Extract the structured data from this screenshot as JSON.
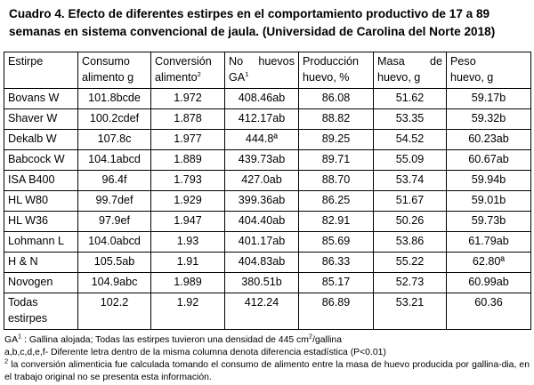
{
  "caption": {
    "line1": "Cuadro 4. Efecto de diferentes estirpes en el comportamiento productivo de 17 a 89",
    "line2": "semanas en sistema convencional de jaula. (Universidad de Carolina del Norte 2018)"
  },
  "headers": {
    "estirpe": "Estirpe",
    "consumo_1": "Consumo",
    "consumo_2": "alimento g",
    "conversion_1": "Conversión",
    "conversion_2": "alimento",
    "conversion_sup": "2",
    "huevos_1a": "No",
    "huevos_1b": "huevos",
    "huevos_2": "GA",
    "huevos_sup": "1",
    "produccion_1": "Producción",
    "produccion_2": "huevo, %",
    "masa_1a": "Masa",
    "masa_1b": "de",
    "masa_2": "huevo, g",
    "peso_1": "Peso",
    "peso_2": "huevo, g"
  },
  "rows": [
    {
      "estirpe": "Bovans W",
      "consumo": "101.8bcde",
      "conversion": "1.972",
      "huevos": "408.46ab",
      "produccion": "86.08",
      "masa": "51.62",
      "peso": "59.17b"
    },
    {
      "estirpe": "Shaver W",
      "consumo": "100.2cdef",
      "conversion": "1.878",
      "huevos": "412.17ab",
      "produccion": "88.82",
      "masa": "53.35",
      "peso": "59.32b"
    },
    {
      "estirpe": "Dekalb W",
      "consumo": "107.8c",
      "conversion": "1.977",
      "huevos": "444.8ª",
      "produccion": "89.25",
      "masa": "54.52",
      "peso": "60.23ab"
    },
    {
      "estirpe": "Babcock W",
      "consumo": "104.1abcd",
      "conversion": "1.889",
      "huevos": "439.73ab",
      "produccion": "89.71",
      "masa": "55.09",
      "peso": "60.67ab"
    },
    {
      "estirpe": "ISA B400",
      "consumo": "96.4f",
      "conversion": "1.793",
      "huevos": "427.0ab",
      "produccion": "88.70",
      "masa": "53.74",
      "peso": "59.94b"
    },
    {
      "estirpe": "HL W80",
      "consumo": "99.7def",
      "conversion": "1.929",
      "huevos": "399.36ab",
      "produccion": "86.25",
      "masa": "51.67",
      "peso": "59.01b"
    },
    {
      "estirpe": "HL W36",
      "consumo": "97.9ef",
      "conversion": "1.947",
      "huevos": "404.40ab",
      "produccion": "82.91",
      "masa": "50.26",
      "peso": "59.73b"
    },
    {
      "estirpe": "Lohmann L",
      "consumo": "104.0abcd",
      "conversion": "1.93",
      "huevos": "401.17ab",
      "produccion": "85.69",
      "masa": "53.86",
      "peso": "61.79ab"
    },
    {
      "estirpe": "H & N",
      "consumo": "105.5ab",
      "conversion": "1.91",
      "huevos": "404.83ab",
      "produccion": "86.33",
      "masa": "55.22",
      "peso": "62.80ª"
    },
    {
      "estirpe": "Novogen",
      "consumo": "104.9abc",
      "conversion": "1.989",
      "huevos": "380.51b",
      "produccion": "85.17",
      "masa": "52.73",
      "peso": "60.99ab"
    }
  ],
  "total": {
    "estirpe_1": "Todas",
    "estirpe_2": "estirpes",
    "consumo": "102.2",
    "conversion": "1.92",
    "huevos": "412.24",
    "produccion": "86.89",
    "masa": "53.21",
    "peso": "60.36"
  },
  "notes": {
    "n1_sup": "1",
    "n1_lead": "GA",
    "n1_text": " : Gallina alojada; Todas las estirpes tuvieron una densidad de 445 cm",
    "n1_sup2": "2",
    "n1_tail": "/gallina",
    "n2": "a,b,c,d,e,f- Diferente letra dentro de la misma columna denota diferencia estadística (P<0.01)",
    "n3_sup": "2",
    "n3_text": " la conversión alimenticia fue calculada tomando el consumo de alimento entre la masa de huevo producida por gallina-dia, en el trabajo original no se presenta esta información."
  }
}
